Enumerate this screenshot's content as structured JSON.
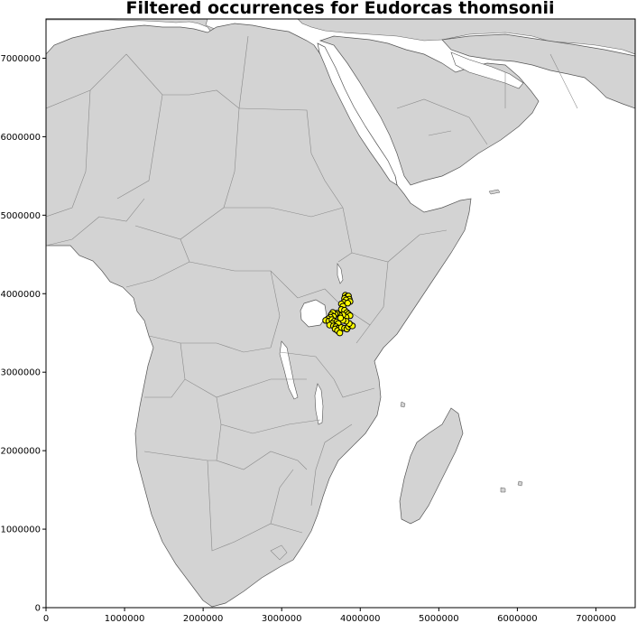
{
  "title": "Filtered occurrences for Eudorcas thomsonii",
  "colors": {
    "land": "#d3d3d3",
    "water": "#ffffff",
    "border": "#8a8a8a",
    "point_fill": "#ffff00",
    "point_edge": "#000000"
  },
  "chart_data": {
    "type": "scatter",
    "title": "Filtered occurrences for Eudorcas thomsonii",
    "xlim": [
      0,
      7500000
    ],
    "ylim": [
      0,
      7500000
    ],
    "x_ticks": [
      0,
      1000000,
      2000000,
      3000000,
      4000000,
      5000000,
      6000000,
      7000000
    ],
    "y_ticks": [
      0,
      1000000,
      2000000,
      3000000,
      4000000,
      5000000,
      6000000,
      7000000
    ],
    "x_tick_labels": [
      "0",
      "1000000",
      "2000000",
      "3000000",
      "4000000",
      "5000000",
      "6000000",
      "7000000"
    ],
    "y_tick_labels": [
      "0",
      "1000000",
      "2000000",
      "3000000",
      "4000000",
      "5000000",
      "6000000",
      "7000000"
    ],
    "points": [
      {
        "x": 3810000,
        "y": 3980000
      },
      {
        "x": 3830000,
        "y": 3960000
      },
      {
        "x": 3850000,
        "y": 3970000
      },
      {
        "x": 3800000,
        "y": 3940000
      },
      {
        "x": 3860000,
        "y": 3930000
      },
      {
        "x": 3820000,
        "y": 3920000
      },
      {
        "x": 3870000,
        "y": 3900000
      },
      {
        "x": 3790000,
        "y": 3890000
      },
      {
        "x": 3840000,
        "y": 3880000
      },
      {
        "x": 3760000,
        "y": 3870000
      },
      {
        "x": 3780000,
        "y": 3840000
      },
      {
        "x": 3760000,
        "y": 3800000
      },
      {
        "x": 3800000,
        "y": 3790000
      },
      {
        "x": 3830000,
        "y": 3760000
      },
      {
        "x": 3850000,
        "y": 3740000
      },
      {
        "x": 3870000,
        "y": 3720000
      },
      {
        "x": 3820000,
        "y": 3700000
      },
      {
        "x": 3780000,
        "y": 3730000
      },
      {
        "x": 3740000,
        "y": 3720000
      },
      {
        "x": 3700000,
        "y": 3750000
      },
      {
        "x": 3680000,
        "y": 3740000
      },
      {
        "x": 3650000,
        "y": 3760000
      },
      {
        "x": 3630000,
        "y": 3730000
      },
      {
        "x": 3660000,
        "y": 3710000
      },
      {
        "x": 3620000,
        "y": 3700000
      },
      {
        "x": 3590000,
        "y": 3680000
      },
      {
        "x": 3560000,
        "y": 3660000
      },
      {
        "x": 3600000,
        "y": 3650000
      },
      {
        "x": 3640000,
        "y": 3670000
      },
      {
        "x": 3670000,
        "y": 3650000
      },
      {
        "x": 3700000,
        "y": 3640000
      },
      {
        "x": 3720000,
        "y": 3620000
      },
      {
        "x": 3640000,
        "y": 3620000
      },
      {
        "x": 3610000,
        "y": 3600000
      },
      {
        "x": 3660000,
        "y": 3590000
      },
      {
        "x": 3690000,
        "y": 3580000
      },
      {
        "x": 3720000,
        "y": 3560000
      },
      {
        "x": 3680000,
        "y": 3550000
      },
      {
        "x": 3710000,
        "y": 3530000
      },
      {
        "x": 3740000,
        "y": 3500000
      },
      {
        "x": 3760000,
        "y": 3570000
      },
      {
        "x": 3800000,
        "y": 3560000
      },
      {
        "x": 3830000,
        "y": 3550000
      },
      {
        "x": 3850000,
        "y": 3580000
      },
      {
        "x": 3880000,
        "y": 3600000
      },
      {
        "x": 3900000,
        "y": 3590000
      },
      {
        "x": 3860000,
        "y": 3620000
      },
      {
        "x": 3820000,
        "y": 3650000
      },
      {
        "x": 3780000,
        "y": 3660000
      },
      {
        "x": 3750000,
        "y": 3690000
      }
    ],
    "grid": false
  }
}
